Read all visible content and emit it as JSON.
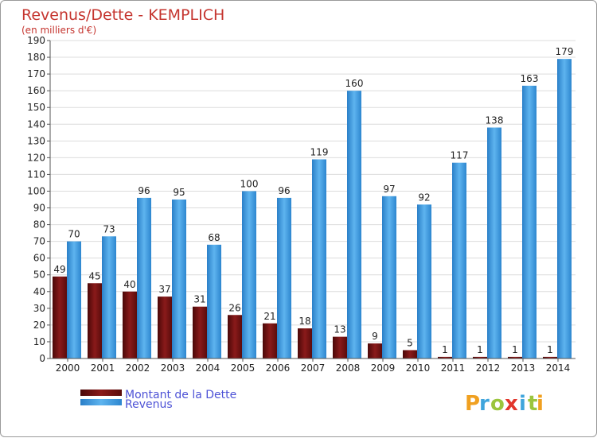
{
  "chart_data": {
    "type": "bar",
    "title": "Revenus/Dette - KEMPLICH",
    "subtitle": "(en milliers d'€)",
    "categories": [
      "2000",
      "2001",
      "2002",
      "2003",
      "2004",
      "2005",
      "2006",
      "2007",
      "2008",
      "2009",
      "2010",
      "2011",
      "2012",
      "2013",
      "2014"
    ],
    "series": [
      {
        "name": "Montant de la Dette",
        "color": "#7a1212",
        "values": [
          49,
          45,
          40,
          37,
          31,
          26,
          21,
          18,
          13,
          9,
          5,
          1,
          1,
          1,
          1
        ]
      },
      {
        "name": "Revenus",
        "color": "#3b9be0",
        "values": [
          70,
          73,
          96,
          95,
          68,
          100,
          96,
          119,
          160,
          97,
          92,
          117,
          138,
          163,
          179
        ]
      }
    ],
    "ylim": [
      0,
      190
    ],
    "yticks": [
      0,
      10,
      20,
      30,
      40,
      50,
      60,
      70,
      80,
      90,
      100,
      110,
      120,
      130,
      140,
      150,
      160,
      170,
      180,
      190
    ],
    "grid": true,
    "legend": "bottom-left"
  },
  "logo": {
    "letters": [
      "P",
      "r",
      "o",
      "x",
      "i",
      "t",
      "i"
    ],
    "colors": [
      "#f0a020",
      "#3fa5dc",
      "#9bc53d",
      "#e2352b",
      "#3fa5dc",
      "#9bc53d",
      "#f0a020"
    ]
  }
}
